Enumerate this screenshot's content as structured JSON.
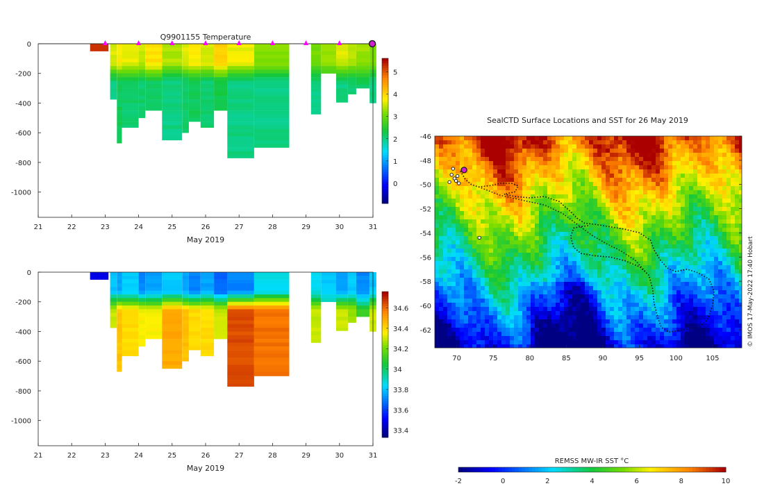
{
  "chart_data": [
    {
      "type": "heatmap",
      "id": "temperature-section",
      "title": "Q9901155  Temperature",
      "xlabel": "May 2019",
      "ylabel": "",
      "xlim": [
        21,
        31
      ],
      "ylim": [
        -1170,
        0
      ],
      "x_ticks": [
        "21",
        "22",
        "23",
        "24",
        "25",
        "26",
        "27",
        "28",
        "29",
        "30",
        "31"
      ],
      "y_ticks": [
        "0",
        "-200",
        "-400",
        "-600",
        "-800",
        "-1000"
      ],
      "y_tick_values": [
        0,
        -200,
        -400,
        -600,
        -800,
        -1000
      ],
      "colorbar": {
        "min": -0.9,
        "max": 5.6,
        "ticks": [
          "0",
          "1",
          "2",
          "3",
          "4",
          "5"
        ],
        "tick_values": [
          0,
          1,
          2,
          3,
          4,
          5
        ]
      },
      "profile_markers_day": [
        23,
        24,
        25,
        26,
        27,
        28,
        29,
        30
      ],
      "current_position_day": 31,
      "columns": [
        {
          "day_start": 22.55,
          "day_end": 23.1,
          "max_depth": 50,
          "surface_value": 5.2,
          "deep_value": 5.2
        },
        {
          "day_start": 23.15,
          "day_end": 23.35,
          "max_depth": 375,
          "surface_value": 3.6,
          "deep_value": 2.0
        },
        {
          "day_start": 23.35,
          "day_end": 23.5,
          "max_depth": 670,
          "surface_value": 3.8,
          "deep_value": 2.2
        },
        {
          "day_start": 23.5,
          "day_end": 24.0,
          "max_depth": 565,
          "surface_value": 3.7,
          "deep_value": 2.1
        },
        {
          "day_start": 24.0,
          "day_end": 24.2,
          "max_depth": 505,
          "surface_value": 3.5,
          "deep_value": 2.1
        },
        {
          "day_start": 24.2,
          "day_end": 24.7,
          "max_depth": 450,
          "surface_value": 3.9,
          "deep_value": 2.2
        },
        {
          "day_start": 24.7,
          "day_end": 25.3,
          "max_depth": 660,
          "surface_value": 3.4,
          "deep_value": 2.0
        },
        {
          "day_start": 25.3,
          "day_end": 25.5,
          "max_depth": 600,
          "surface_value": 3.6,
          "deep_value": 2.1
        },
        {
          "day_start": 25.5,
          "day_end": 25.85,
          "max_depth": 530,
          "surface_value": 3.8,
          "deep_value": 2.2
        },
        {
          "day_start": 25.85,
          "day_end": 26.25,
          "max_depth": 565,
          "surface_value": 3.6,
          "deep_value": 2.1
        },
        {
          "day_start": 26.25,
          "day_end": 26.65,
          "max_depth": 450,
          "surface_value": 4.1,
          "deep_value": 2.3
        },
        {
          "day_start": 26.65,
          "day_end": 27.45,
          "max_depth": 770,
          "surface_value": 3.7,
          "deep_value": 2.0
        },
        {
          "day_start": 27.45,
          "day_end": 28.5,
          "max_depth": 700,
          "surface_value": 3.2,
          "deep_value": 2.0
        },
        {
          "day_start": 29.15,
          "day_end": 29.45,
          "max_depth": 480,
          "surface_value": 3.1,
          "deep_value": 2.0
        },
        {
          "day_start": 29.45,
          "day_end": 29.9,
          "max_depth": 200,
          "surface_value": 3.3,
          "deep_value": 2.1
        },
        {
          "day_start": 29.9,
          "day_end": 30.25,
          "max_depth": 395,
          "surface_value": 3.6,
          "deep_value": 2.0
        },
        {
          "day_start": 30.25,
          "day_end": 30.5,
          "max_depth": 340,
          "surface_value": 3.4,
          "deep_value": 2.1
        },
        {
          "day_start": 30.5,
          "day_end": 30.9,
          "max_depth": 300,
          "surface_value": 3.3,
          "deep_value": 2.2
        },
        {
          "day_start": 30.9,
          "day_end": 31.1,
          "max_depth": 400,
          "surface_value": 3.2,
          "deep_value": 2.0
        }
      ]
    },
    {
      "type": "heatmap",
      "id": "salinity-section",
      "title": "",
      "xlabel": "May 2019",
      "ylabel": "",
      "xlim": [
        21,
        31
      ],
      "ylim": [
        -1170,
        0
      ],
      "x_ticks": [
        "21",
        "22",
        "23",
        "24",
        "25",
        "26",
        "27",
        "28",
        "29",
        "30",
        "31"
      ],
      "y_ticks": [
        "0",
        "-200",
        "-400",
        "-600",
        "-800",
        "-1000"
      ],
      "y_tick_values": [
        0,
        -200,
        -400,
        -600,
        -800,
        -1000
      ],
      "colorbar": {
        "min": 33.33,
        "max": 34.76,
        "ticks": [
          "33.4",
          "33.6",
          "33.8",
          "34",
          "34.2",
          "34.4",
          "34.6"
        ],
        "tick_values": [
          33.4,
          33.6,
          33.8,
          34,
          34.2,
          34.4,
          34.6
        ]
      },
      "columns": [
        {
          "day_start": 22.55,
          "day_end": 23.1,
          "max_depth": 50,
          "surface_value": 33.45,
          "deep_value": 33.45
        },
        {
          "day_start": 23.15,
          "day_end": 23.35,
          "max_depth": 375,
          "surface_value": 33.8,
          "deep_value": 34.3
        },
        {
          "day_start": 23.35,
          "day_end": 23.5,
          "max_depth": 670,
          "surface_value": 33.75,
          "deep_value": 34.45
        },
        {
          "day_start": 23.5,
          "day_end": 24.0,
          "max_depth": 565,
          "surface_value": 33.8,
          "deep_value": 34.4
        },
        {
          "day_start": 24.0,
          "day_end": 24.2,
          "max_depth": 505,
          "surface_value": 33.7,
          "deep_value": 34.35
        },
        {
          "day_start": 24.2,
          "day_end": 24.7,
          "max_depth": 450,
          "surface_value": 33.75,
          "deep_value": 34.35
        },
        {
          "day_start": 24.7,
          "day_end": 25.3,
          "max_depth": 660,
          "surface_value": 33.8,
          "deep_value": 34.5
        },
        {
          "day_start": 25.3,
          "day_end": 25.5,
          "max_depth": 600,
          "surface_value": 33.75,
          "deep_value": 34.45
        },
        {
          "day_start": 25.5,
          "day_end": 25.85,
          "max_depth": 530,
          "surface_value": 33.7,
          "deep_value": 34.4
        },
        {
          "day_start": 25.85,
          "day_end": 26.25,
          "max_depth": 565,
          "surface_value": 33.75,
          "deep_value": 34.4
        },
        {
          "day_start": 26.25,
          "day_end": 26.65,
          "max_depth": 450,
          "surface_value": 33.65,
          "deep_value": 34.3
        },
        {
          "day_start": 26.65,
          "day_end": 27.45,
          "max_depth": 770,
          "surface_value": 33.7,
          "deep_value": 34.65
        },
        {
          "day_start": 27.45,
          "day_end": 28.5,
          "max_depth": 700,
          "surface_value": 33.85,
          "deep_value": 34.6
        },
        {
          "day_start": 29.15,
          "day_end": 29.45,
          "max_depth": 480,
          "surface_value": 33.85,
          "deep_value": 34.3
        },
        {
          "day_start": 29.45,
          "day_end": 29.9,
          "max_depth": 200,
          "surface_value": 33.8,
          "deep_value": 34.0
        },
        {
          "day_start": 29.9,
          "day_end": 30.25,
          "max_depth": 395,
          "surface_value": 33.75,
          "deep_value": 34.3
        },
        {
          "day_start": 30.25,
          "day_end": 30.5,
          "max_depth": 340,
          "surface_value": 33.8,
          "deep_value": 34.25
        },
        {
          "day_start": 30.5,
          "day_end": 30.9,
          "max_depth": 300,
          "surface_value": 33.7,
          "deep_value": 34.1
        },
        {
          "day_start": 30.9,
          "day_end": 31.1,
          "max_depth": 400,
          "surface_value": 33.8,
          "deep_value": 34.3
        }
      ]
    },
    {
      "type": "heatmap",
      "id": "sst-map",
      "title": "SealCTD Surface Locations and SST for 26 May 2019",
      "xlabel": "",
      "ylabel": "",
      "xlim": [
        67,
        109
      ],
      "ylim": [
        -63.5,
        -46
      ],
      "x_ticks": [
        "70",
        "75",
        "80",
        "85",
        "90",
        "95",
        "100",
        "105"
      ],
      "x_tick_values": [
        70,
        75,
        80,
        85,
        90,
        95,
        100,
        105
      ],
      "y_ticks": [
        "-46",
        "-48",
        "-50",
        "-52",
        "-54",
        "-56",
        "-58",
        "-60",
        "-62"
      ],
      "y_tick_values": [
        -46,
        -48,
        -50,
        -52,
        -54,
        -56,
        -58,
        -60,
        -62
      ],
      "colorbar": {
        "label": "REMSS MW-IR SST °C",
        "min": -2,
        "max": 10,
        "ticks": [
          "-2",
          "0",
          "2",
          "4",
          "6",
          "8",
          "10"
        ],
        "tick_values": [
          -2,
          0,
          2,
          4,
          6,
          8,
          10
        ]
      },
      "track": [
        [
          70.5,
          -48.9
        ],
        [
          71.2,
          -49.6
        ],
        [
          72.0,
          -50.0
        ],
        [
          73.0,
          -50.2
        ],
        [
          74.5,
          -50.1
        ],
        [
          76.0,
          -49.9
        ],
        [
          77.5,
          -49.9
        ],
        [
          78.4,
          -50.1
        ],
        [
          78.0,
          -50.6
        ],
        [
          76.5,
          -50.8
        ],
        [
          78.0,
          -51.0
        ],
        [
          80.0,
          -51.1
        ],
        [
          82.0,
          -51.0
        ],
        [
          84.0,
          -51.4
        ],
        [
          85.5,
          -52.2
        ],
        [
          86.5,
          -52.8
        ],
        [
          87.5,
          -53.2
        ],
        [
          89.0,
          -53.3
        ],
        [
          91.0,
          -53.5
        ],
        [
          93.0,
          -53.7
        ],
        [
          95.0,
          -54.0
        ],
        [
          96.5,
          -54.6
        ],
        [
          97.0,
          -55.4
        ],
        [
          97.8,
          -56.2
        ],
        [
          98.8,
          -56.9
        ],
        [
          100.0,
          -57.2
        ],
        [
          101.5,
          -57.0
        ],
        [
          103.0,
          -57.3
        ],
        [
          104.5,
          -57.8
        ],
        [
          105.2,
          -58.8
        ],
        [
          105.0,
          -60.0
        ],
        [
          104.3,
          -61.2
        ],
        [
          103.0,
          -61.8
        ],
        [
          101.0,
          -62.0
        ],
        [
          99.0,
          -62.2
        ],
        [
          98.0,
          -61.8
        ],
        [
          97.5,
          -61.0
        ],
        [
          97.0,
          -59.8
        ],
        [
          96.8,
          -58.6
        ],
        [
          96.3,
          -57.5
        ],
        [
          95.0,
          -56.8
        ],
        [
          93.0,
          -56.3
        ],
        [
          91.0,
          -56.0
        ],
        [
          89.0,
          -55.9
        ],
        [
          87.0,
          -55.7
        ],
        [
          86.0,
          -55.2
        ],
        [
          85.6,
          -54.3
        ],
        [
          86.0,
          -53.6
        ],
        [
          86.8,
          -53.5
        ],
        [
          88.0,
          -53.4
        ]
      ],
      "track_secondary": [
        [
          73.0,
          -50.2
        ],
        [
          76.0,
          -50.9
        ],
        [
          79.0,
          -51.3
        ],
        [
          82.0,
          -51.7
        ],
        [
          84.5,
          -52.4
        ],
        [
          86.5,
          -53.3
        ],
        [
          88.5,
          -54.2
        ],
        [
          90.5,
          -54.9
        ],
        [
          92.5,
          -55.5
        ],
        [
          94.5,
          -56.3
        ],
        [
          95.8,
          -57.2
        ]
      ],
      "stations": [
        [
          69.3,
          -49.2
        ],
        [
          69.7,
          -49.5
        ],
        [
          69.0,
          -49.8
        ],
        [
          69.9,
          -49.7
        ],
        [
          70.1,
          -49.3
        ],
        [
          69.5,
          -48.7
        ],
        [
          70.3,
          -49.9
        ],
        [
          73.1,
          -54.4
        ]
      ],
      "current_location": [
        71.0,
        -48.8
      ]
    }
  ],
  "footer": {
    "credit": "© IMOS 17-May-2022 17:40 Hobart"
  },
  "colors": {
    "profile_marker": "#ff00ff",
    "current_marker": "#d020d0",
    "track": "#111111"
  }
}
